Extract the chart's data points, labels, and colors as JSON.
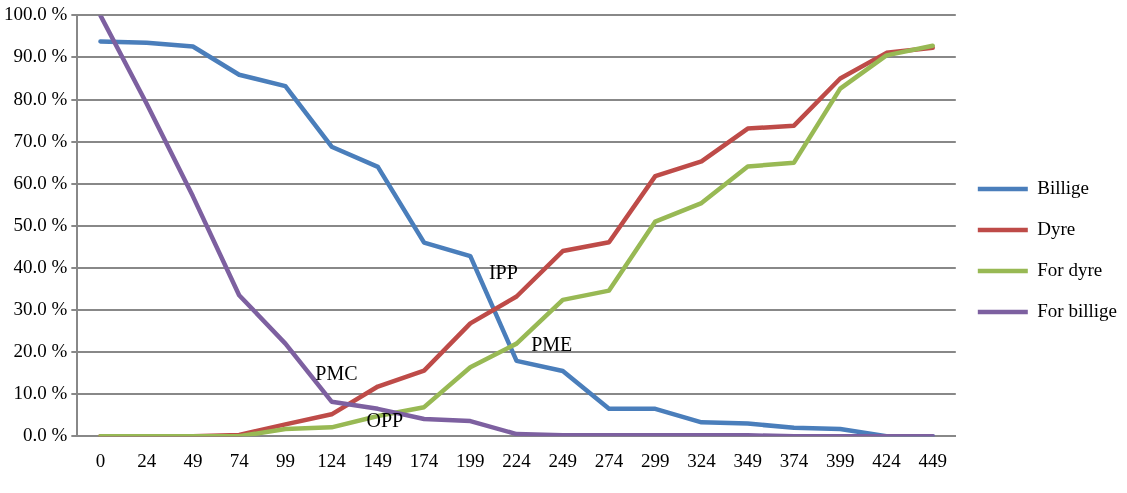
{
  "chart_data": {
    "type": "line",
    "categories": [
      "0",
      "24",
      "49",
      "74",
      "99",
      "124",
      "149",
      "174",
      "199",
      "224",
      "249",
      "274",
      "299",
      "324",
      "349",
      "374",
      "399",
      "424",
      "449"
    ],
    "series": [
      {
        "name": "Billige",
        "color": "#4a7ebb",
        "values": [
          93.8,
          93.5,
          92.6,
          85.9,
          83.2,
          68.8,
          64.0,
          46.0,
          42.8,
          17.9,
          15.5,
          6.5,
          6.5,
          3.3,
          3.0,
          2.0,
          1.7,
          0,
          0
        ]
      },
      {
        "name": "Dyre",
        "color": "#be4b48",
        "values": [
          0,
          0,
          0,
          0.3,
          2.8,
          5.2,
          11.8,
          15.6,
          26.8,
          33.2,
          44.0,
          46.1,
          61.8,
          65.3,
          73.1,
          73.8,
          85.0,
          91.1,
          92.3
        ]
      },
      {
        "name": "For dyre",
        "color": "#98b954",
        "values": [
          0,
          0,
          0,
          0,
          1.7,
          2.1,
          4.8,
          6.9,
          16.4,
          22.0,
          32.4,
          34.6,
          51.0,
          55.4,
          64.1,
          65.0,
          82.6,
          90.5,
          92.8
        ]
      },
      {
        "name": "For billige",
        "color": "#7d60a0",
        "values": [
          100,
          79,
          57,
          33.5,
          22,
          8.2,
          6.5,
          4.1,
          3.6,
          0.5,
          0.2,
          0.2,
          0.2,
          0.2,
          0.2,
          0,
          0,
          0,
          0
        ]
      }
    ],
    "ylim": [
      0,
      100
    ],
    "yticks": [
      {
        "value": 0,
        "label": "0.0 %"
      },
      {
        "value": 10,
        "label": "10.0 %"
      },
      {
        "value": 20,
        "label": "20.0 %"
      },
      {
        "value": 30,
        "label": "30.0 %"
      },
      {
        "value": 40,
        "label": "40.0 %"
      },
      {
        "value": 50,
        "label": "50.0 %"
      },
      {
        "value": 60,
        "label": "60.0 %"
      },
      {
        "value": 70,
        "label": "70.0 %"
      },
      {
        "value": 80,
        "label": "80.0 %"
      },
      {
        "value": 90,
        "label": "90.0 %"
      },
      {
        "value": 100,
        "label": "100.0 %"
      }
    ],
    "annotations": [
      "PMC",
      "OPP",
      "IPP",
      "PME"
    ],
    "grid": "y",
    "legend": "right",
    "marker": "none",
    "line_style": "solid"
  }
}
